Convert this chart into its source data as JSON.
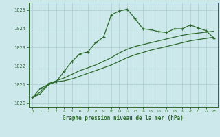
{
  "bg_color": "#cce8ea",
  "grid_color": "#aacccc",
  "line_color": "#2d6a2d",
  "title": "Graphe pression niveau de la mer (hPa)",
  "xlim": [
    -0.5,
    23.5
  ],
  "ylim": [
    1019.8,
    1025.4
  ],
  "yticks": [
    1020,
    1021,
    1022,
    1023,
    1024,
    1025
  ],
  "xticks": [
    0,
    1,
    2,
    3,
    4,
    5,
    6,
    7,
    8,
    9,
    10,
    11,
    12,
    13,
    14,
    15,
    16,
    17,
    18,
    19,
    20,
    21,
    22,
    23
  ],
  "series1_x": [
    0,
    1,
    2,
    3,
    4,
    5,
    6,
    7,
    8,
    9,
    10,
    11,
    12,
    13,
    14,
    15,
    16,
    17,
    18,
    19,
    20,
    21,
    22,
    23
  ],
  "series1_y": [
    1020.3,
    1020.8,
    1021.0,
    1021.15,
    1021.7,
    1022.25,
    1022.65,
    1022.75,
    1023.25,
    1023.55,
    1024.75,
    1024.95,
    1025.05,
    1024.55,
    1024.0,
    1023.95,
    1023.85,
    1023.8,
    1024.0,
    1024.0,
    1024.2,
    1024.05,
    1023.9,
    1023.5
  ],
  "series2_x": [
    0,
    1,
    2,
    3,
    4,
    5,
    6,
    7,
    8,
    9,
    10,
    11,
    12,
    13,
    14,
    15,
    16,
    17,
    18,
    19,
    20,
    21,
    22,
    23
  ],
  "series2_y": [
    1020.3,
    1020.5,
    1021.0,
    1021.15,
    1021.2,
    1021.3,
    1021.45,
    1021.6,
    1021.75,
    1021.9,
    1022.05,
    1022.25,
    1022.45,
    1022.6,
    1022.72,
    1022.85,
    1022.95,
    1023.05,
    1023.15,
    1023.25,
    1023.35,
    1023.42,
    1023.48,
    1023.55
  ],
  "series3_x": [
    0,
    1,
    2,
    3,
    4,
    5,
    6,
    7,
    8,
    9,
    10,
    11,
    12,
    13,
    14,
    15,
    16,
    17,
    18,
    19,
    20,
    21,
    22,
    23
  ],
  "series3_y": [
    1020.3,
    1020.6,
    1021.05,
    1021.2,
    1021.35,
    1021.55,
    1021.75,
    1021.9,
    1022.05,
    1022.25,
    1022.45,
    1022.7,
    1022.9,
    1023.05,
    1023.15,
    1023.25,
    1023.35,
    1023.45,
    1023.55,
    1023.65,
    1023.72,
    1023.77,
    1023.82,
    1023.87
  ]
}
